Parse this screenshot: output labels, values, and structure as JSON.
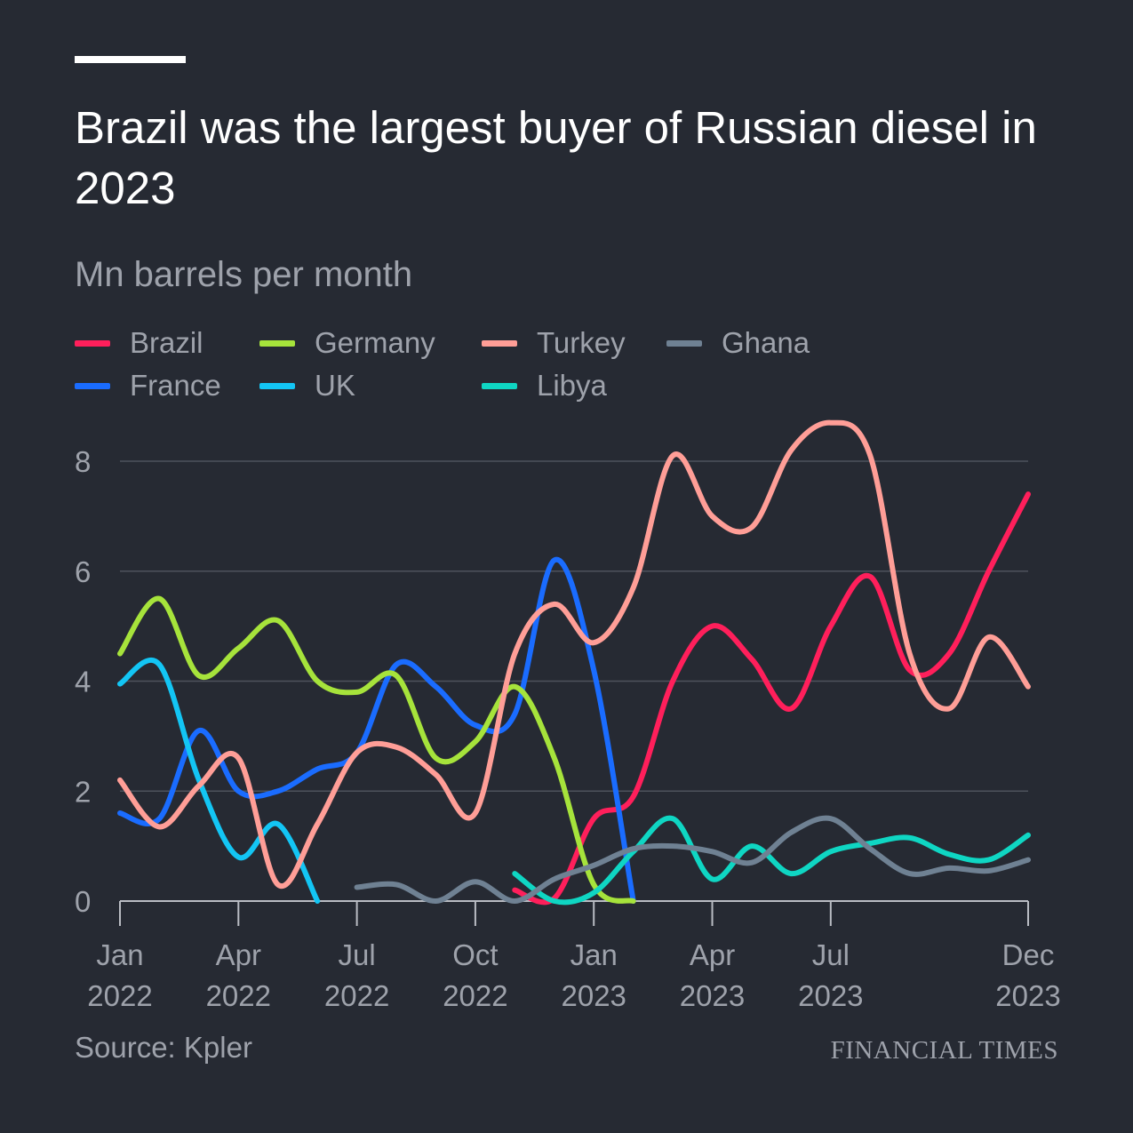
{
  "header": {
    "title": "Brazil was the largest buyer of Russian diesel in 2023",
    "subtitle": "Mn barrels per month"
  },
  "footer": {
    "source": "Source: Kpler",
    "brand": "FINANCIAL TIMES"
  },
  "chart_data": {
    "type": "line",
    "title": "Brazil was the largest buyer of Russian diesel in 2023",
    "ylabel": "Mn barrels per month",
    "xlabel": "",
    "ylim": [
      0,
      8
    ],
    "yticks": [
      0,
      2,
      4,
      6,
      8
    ],
    "xlim": [
      0,
      23
    ],
    "xticks": [
      {
        "x": 0,
        "line1": "Jan",
        "line2": "2022"
      },
      {
        "x": 3,
        "line1": "Apr",
        "line2": "2022"
      },
      {
        "x": 6,
        "line1": "Jul",
        "line2": "2022"
      },
      {
        "x": 9,
        "line1": "Oct",
        "line2": "2022"
      },
      {
        "x": 12,
        "line1": "Jan",
        "line2": "2023"
      },
      {
        "x": 15,
        "line1": "Apr",
        "line2": "2023"
      },
      {
        "x": 18,
        "line1": "Jul",
        "line2": "2023"
      },
      {
        "x": 23,
        "line1": "Dec",
        "line2": "2023"
      }
    ],
    "grid": true,
    "legend_position": "top",
    "series": [
      {
        "name": "Brazil",
        "color": "#ff1f5b",
        "points": [
          [
            10,
            0.2
          ],
          [
            11,
            0.05
          ],
          [
            12,
            1.5
          ],
          [
            13,
            1.9
          ],
          [
            14,
            4.0
          ],
          [
            15,
            5.0
          ],
          [
            16,
            4.4
          ],
          [
            17,
            3.5
          ],
          [
            18,
            5.0
          ],
          [
            19,
            5.9
          ],
          [
            20,
            4.2
          ],
          [
            21,
            4.5
          ],
          [
            22,
            6.0
          ],
          [
            23,
            7.4
          ]
        ]
      },
      {
        "name": "France",
        "color": "#1a6cff",
        "points": [
          [
            0,
            1.6
          ],
          [
            1,
            1.5
          ],
          [
            2,
            3.1
          ],
          [
            3,
            2.0
          ],
          [
            4,
            2.0
          ],
          [
            5,
            2.4
          ],
          [
            6,
            2.7
          ],
          [
            7,
            4.3
          ],
          [
            8,
            3.9
          ],
          [
            9,
            3.2
          ],
          [
            10,
            3.4
          ],
          [
            11,
            6.2
          ],
          [
            12,
            4.2
          ],
          [
            13,
            0
          ]
        ]
      },
      {
        "name": "Germany",
        "color": "#a6e33b",
        "points": [
          [
            0,
            4.5
          ],
          [
            1,
            5.5
          ],
          [
            2,
            4.1
          ],
          [
            3,
            4.6
          ],
          [
            4,
            5.1
          ],
          [
            5,
            4.0
          ],
          [
            6,
            3.8
          ],
          [
            7,
            4.1
          ],
          [
            8,
            2.6
          ],
          [
            9,
            2.9
          ],
          [
            10,
            3.9
          ],
          [
            11,
            2.6
          ],
          [
            12,
            0.3
          ],
          [
            13,
            0
          ]
        ]
      },
      {
        "name": "UK",
        "color": "#13c5f4",
        "points": [
          [
            0,
            3.95
          ],
          [
            1,
            4.3
          ],
          [
            2,
            2.2
          ],
          [
            3,
            0.8
          ],
          [
            4,
            1.4
          ],
          [
            5,
            0
          ]
        ]
      },
      {
        "name": "Turkey",
        "color": "#ff9e97",
        "points": [
          [
            0,
            2.2
          ],
          [
            1,
            1.35
          ],
          [
            2,
            2.1
          ],
          [
            3,
            2.6
          ],
          [
            4,
            0.3
          ],
          [
            5,
            1.4
          ],
          [
            6,
            2.7
          ],
          [
            7,
            2.8
          ],
          [
            8,
            2.3
          ],
          [
            9,
            1.6
          ],
          [
            10,
            4.5
          ],
          [
            11,
            5.4
          ],
          [
            12,
            4.7
          ],
          [
            13,
            5.7
          ],
          [
            14,
            8.1
          ],
          [
            15,
            7.0
          ],
          [
            16,
            6.8
          ],
          [
            17,
            8.2
          ],
          [
            18,
            8.7
          ],
          [
            19,
            8.1
          ],
          [
            20,
            4.5
          ],
          [
            21,
            3.5
          ],
          [
            22,
            4.8
          ],
          [
            23,
            3.9
          ]
        ]
      },
      {
        "name": "Libya",
        "color": "#0fd6c3",
        "points": [
          [
            10,
            0.5
          ],
          [
            11,
            0
          ],
          [
            12,
            0.15
          ],
          [
            13,
            0.9
          ],
          [
            14,
            1.5
          ],
          [
            15,
            0.4
          ],
          [
            16,
            1.0
          ],
          [
            17,
            0.5
          ],
          [
            18,
            0.9
          ],
          [
            19,
            1.05
          ],
          [
            20,
            1.15
          ],
          [
            21,
            0.85
          ],
          [
            22,
            0.75
          ],
          [
            23,
            1.2
          ]
        ]
      },
      {
        "name": "Ghana",
        "color": "#6f8193",
        "points": [
          [
            6,
            0.25
          ],
          [
            7,
            0.3
          ],
          [
            8,
            0
          ],
          [
            9,
            0.35
          ],
          [
            10,
            0
          ],
          [
            11,
            0.4
          ],
          [
            12,
            0.65
          ],
          [
            13,
            0.95
          ],
          [
            14,
            1.0
          ],
          [
            15,
            0.9
          ],
          [
            16,
            0.7
          ],
          [
            17,
            1.25
          ],
          [
            18,
            1.5
          ],
          [
            19,
            0.95
          ],
          [
            20,
            0.5
          ],
          [
            21,
            0.6
          ],
          [
            22,
            0.55
          ],
          [
            23,
            0.75
          ]
        ]
      }
    ]
  },
  "legend": {
    "items": [
      {
        "label": "Brazil",
        "color": "#ff1f5b"
      },
      {
        "label": "Germany",
        "color": "#a6e33b"
      },
      {
        "label": "Turkey",
        "color": "#ff9e97"
      },
      {
        "label": "Ghana",
        "color": "#6f8193"
      },
      {
        "label": "France",
        "color": "#1a6cff"
      },
      {
        "label": "UK",
        "color": "#13c5f4"
      },
      {
        "label": "Libya",
        "color": "#0fd6c3"
      }
    ]
  }
}
